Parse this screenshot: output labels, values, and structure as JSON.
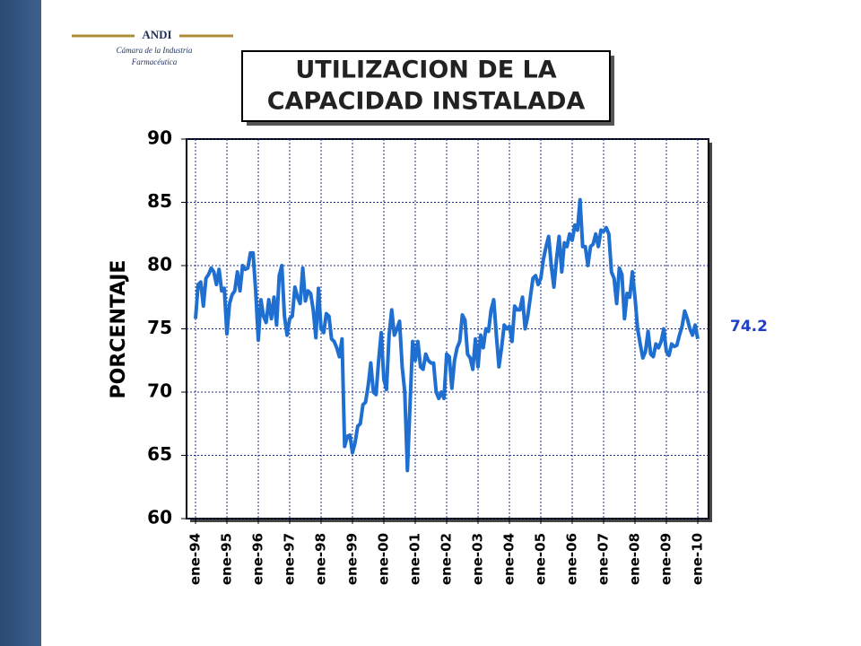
{
  "header": {
    "logo": "ANDI",
    "lines": [
      "Cámara de la Industria",
      "Farmacéutica"
    ]
  },
  "chart_data": {
    "type": "line",
    "title": [
      "UTILIZACION DE LA",
      "CAPACIDAD INSTALADA"
    ],
    "y_label": "PORCENTAJE",
    "annotations": [
      "74.2"
    ],
    "categories": [
      "ene-94",
      null,
      null,
      null,
      null,
      null,
      null,
      null,
      null,
      null,
      null,
      null,
      "ene-95",
      null,
      null,
      null,
      null,
      null,
      null,
      null,
      null,
      null,
      null,
      null,
      "ene-96",
      null,
      null,
      null,
      null,
      null,
      null,
      null,
      null,
      null,
      null,
      null,
      "ene-97",
      null,
      null,
      null,
      null,
      null,
      null,
      null,
      null,
      null,
      null,
      null,
      "ene-98",
      null,
      null,
      null,
      null,
      null,
      null,
      null,
      null,
      null,
      null,
      null,
      "ene-99",
      null,
      null,
      null,
      null,
      null,
      null,
      null,
      null,
      null,
      null,
      null,
      "ene-00",
      null,
      null,
      null,
      null,
      null,
      null,
      null,
      null,
      null,
      null,
      null,
      "ene-01",
      null,
      null,
      null,
      null,
      null,
      null,
      null,
      null,
      null,
      null,
      null,
      "ene-02",
      null,
      null,
      null,
      null,
      null,
      null,
      null,
      null,
      null,
      null,
      null,
      "ene-03",
      null,
      null,
      null,
      null,
      null,
      null,
      null,
      null,
      null,
      null,
      null,
      "ene-04",
      null,
      null,
      null,
      null,
      null,
      null,
      null,
      null,
      null,
      null,
      null,
      "ene-05",
      null,
      null,
      null,
      null,
      null,
      null,
      null,
      null,
      null,
      null,
      null,
      "ene-06",
      null,
      null,
      null,
      null,
      null,
      null,
      null,
      null,
      null,
      null,
      null,
      "ene-07",
      null,
      null,
      null,
      null,
      null,
      null,
      null,
      null,
      null,
      null,
      null,
      "ene-08",
      null,
      null,
      null,
      null,
      null,
      null,
      null,
      null,
      null,
      null,
      null,
      "ene-09",
      null,
      null,
      null,
      null,
      null,
      null,
      null,
      null,
      null,
      null,
      null,
      "ene-10"
    ],
    "series": [
      {
        "name": "PORCENTAJE",
        "color": "#1f6fd1",
        "values": [
          75.8,
          78.5,
          78.7,
          76.8,
          79,
          79.3,
          79.8,
          79.5,
          78.5,
          79.7,
          78,
          78.2,
          74.6,
          77,
          77.7,
          78,
          79.5,
          78,
          80,
          79.7,
          79.8,
          81,
          81,
          78,
          74.1,
          77.3,
          76,
          75.5,
          77.3,
          75.8,
          77.5,
          75.3,
          79.2,
          80,
          76,
          74.5,
          75.8,
          76,
          78.3,
          77.5,
          77,
          79.8,
          77.2,
          78,
          77.8,
          76.5,
          74.3,
          78.2,
          75,
          74.7,
          76.2,
          76,
          74.2,
          74,
          73.5,
          72.8,
          74.2,
          65.7,
          66.5,
          66.6,
          65.2,
          66,
          67.3,
          67.5,
          69,
          69.2,
          70.5,
          72.3,
          70,
          69.8,
          72.5,
          74.7,
          71,
          70.2,
          74.5,
          76.5,
          74.5,
          75,
          75.6,
          72,
          70,
          63.8,
          69,
          74,
          72.5,
          74,
          72,
          71.8,
          73,
          72.5,
          72.3,
          72.3,
          70,
          69.5,
          70,
          69.5,
          73,
          72.8,
          70.3,
          72.5,
          73.5,
          74,
          76.1,
          75.7,
          73,
          72.7,
          71.8,
          74.2,
          72,
          74.5,
          73.5,
          75,
          74.8,
          76.5,
          77.3,
          74.5,
          72,
          73.5,
          75.3,
          75,
          75.2,
          74,
          76.8,
          76.5,
          76.5,
          77.5,
          75,
          76,
          77.5,
          79,
          79.2,
          78.5,
          79,
          80.5,
          81.5,
          82.3,
          80,
          78.3,
          80.5,
          82.3,
          79.5,
          81.8,
          81.5,
          82.5,
          82,
          83.2,
          82.8,
          85.2,
          81.5,
          81.5,
          80,
          81.5,
          81.7,
          82.5,
          81.5,
          82.8,
          82.7,
          83,
          82.5,
          79.5,
          79,
          77,
          79.8,
          79.3,
          75.8,
          77.8,
          77.5,
          79.5,
          77.5,
          75,
          73.8,
          72.7,
          73.2,
          74.8,
          73,
          72.8,
          73.8,
          73.5,
          74,
          75,
          73.2,
          72.9,
          73.8,
          73.6,
          73.7,
          74.5,
          75.2,
          76.4,
          75.8,
          75,
          74.5,
          75.3,
          74.2
        ]
      }
    ],
    "ylim": [
      60,
      90
    ],
    "yticks": [
      60,
      65,
      70,
      75,
      80,
      85,
      90
    ],
    "grid": true
  }
}
